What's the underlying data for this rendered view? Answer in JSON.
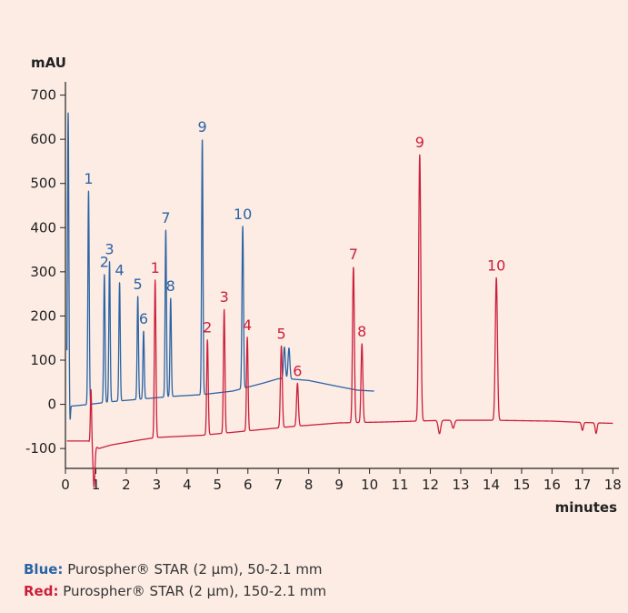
{
  "chart_data": {
    "type": "line",
    "ylabel": "mAU",
    "xlabel": "minutes",
    "xlim": [
      0,
      18.2
    ],
    "ylim": [
      -145,
      730
    ],
    "x_ticks": [
      0,
      1,
      2,
      3,
      4,
      5,
      6,
      7,
      8,
      9,
      10,
      11,
      12,
      13,
      14,
      15,
      16,
      17,
      18
    ],
    "y_ticks": [
      -100,
      0,
      100,
      200,
      300,
      400,
      500,
      600,
      700
    ],
    "grid": false,
    "colors": {
      "blue": "#2b64a4",
      "red": "#cc1f3c",
      "axis": "#222222"
    },
    "series": [
      {
        "name": "Blue",
        "color": "#2b64a4",
        "x_end": 10.15,
        "baseline": [
          [
            0.05,
            -5
          ],
          [
            0.8,
            0
          ],
          [
            1.5,
            6
          ],
          [
            2.5,
            12
          ],
          [
            3.5,
            18
          ],
          [
            4.5,
            22
          ],
          [
            5.5,
            30
          ],
          [
            6.5,
            48
          ],
          [
            7.0,
            58
          ],
          [
            7.5,
            57
          ],
          [
            8.0,
            54
          ],
          [
            9.0,
            40
          ],
          [
            9.6,
            32
          ],
          [
            10.15,
            30
          ]
        ],
        "peaks": [
          {
            "label": "",
            "t": 0.09,
            "h": 665,
            "w": 0.022
          },
          {
            "label": "",
            "t": 0.15,
            "h": -40,
            "w": 0.015
          },
          {
            "label": "1",
            "t": 0.76,
            "h": 483,
            "w": 0.022
          },
          {
            "label": "2",
            "t": 1.28,
            "h": 290,
            "w": 0.022
          },
          {
            "label": "3",
            "t": 1.45,
            "h": 318,
            "w": 0.022
          },
          {
            "label": "4",
            "t": 1.78,
            "h": 268,
            "w": 0.022
          },
          {
            "label": "5",
            "t": 2.38,
            "h": 233,
            "w": 0.022
          },
          {
            "label": "6",
            "t": 2.57,
            "h": 153,
            "w": 0.022
          },
          {
            "label": "7",
            "t": 3.3,
            "h": 378,
            "w": 0.022
          },
          {
            "label": "8",
            "t": 3.46,
            "h": 222,
            "w": 0.022
          },
          {
            "label": "9",
            "t": 4.5,
            "h": 578,
            "w": 0.022
          },
          {
            "label": "10",
            "t": 5.83,
            "h": 367,
            "w": 0.025
          },
          {
            "label": "",
            "t": 7.2,
            "h": 72,
            "w": 0.03
          },
          {
            "label": "",
            "t": 7.35,
            "h": 70,
            "w": 0.03
          }
        ]
      },
      {
        "name": "Red",
        "color": "#cc1f3c",
        "x_end": 18.0,
        "baseline": [
          [
            0.05,
            -83
          ],
          [
            0.75,
            -83
          ],
          [
            1.1,
            -100
          ],
          [
            1.5,
            -92
          ],
          [
            2.5,
            -80
          ],
          [
            3.0,
            -75
          ],
          [
            4.5,
            -70
          ],
          [
            6.0,
            -60
          ],
          [
            7.5,
            -50
          ],
          [
            9.0,
            -42
          ],
          [
            10.5,
            -40
          ],
          [
            11.5,
            -38
          ],
          [
            12.5,
            -36
          ],
          [
            14.0,
            -36
          ],
          [
            16.0,
            -38
          ],
          [
            17.0,
            -41
          ],
          [
            18.0,
            -43
          ]
        ],
        "peaks": [
          {
            "label": "",
            "t": 0.84,
            "h": 122,
            "w": 0.02
          },
          {
            "label": "",
            "t": 0.94,
            "h": -95,
            "w": 0.03
          },
          {
            "label": "1",
            "t": 2.95,
            "h": 357,
            "w": 0.025
          },
          {
            "label": "2",
            "t": 4.67,
            "h": 215,
            "w": 0.025
          },
          {
            "label": "3",
            "t": 5.22,
            "h": 280,
            "w": 0.025
          },
          {
            "label": "4",
            "t": 5.98,
            "h": 212,
            "w": 0.025
          },
          {
            "label": "5",
            "t": 7.1,
            "h": 185,
            "w": 0.03
          },
          {
            "label": "6",
            "t": 7.63,
            "h": 97,
            "w": 0.03
          },
          {
            "label": "7",
            "t": 9.47,
            "h": 353,
            "w": 0.03
          },
          {
            "label": "8",
            "t": 9.75,
            "h": 178,
            "w": 0.03
          },
          {
            "label": "9",
            "t": 11.65,
            "h": 603,
            "w": 0.035
          },
          {
            "label": "10",
            "t": 14.17,
            "h": 323,
            "w": 0.035
          },
          {
            "label": "",
            "t": 12.3,
            "h": -30,
            "w": 0.04
          },
          {
            "label": "",
            "t": 12.75,
            "h": -18,
            "w": 0.04
          },
          {
            "label": "",
            "t": 17.0,
            "h": -18,
            "w": 0.03
          },
          {
            "label": "",
            "t": 17.45,
            "h": -24,
            "w": 0.03
          }
        ]
      }
    ]
  },
  "legend": {
    "blue_key": "Blue:",
    "blue_text": " Purospher® STAR (2 µm), 50-2.1 mm",
    "red_key": "Red:",
    "red_text": " Purospher® STAR (2 µm), 150-2.1 mm"
  }
}
